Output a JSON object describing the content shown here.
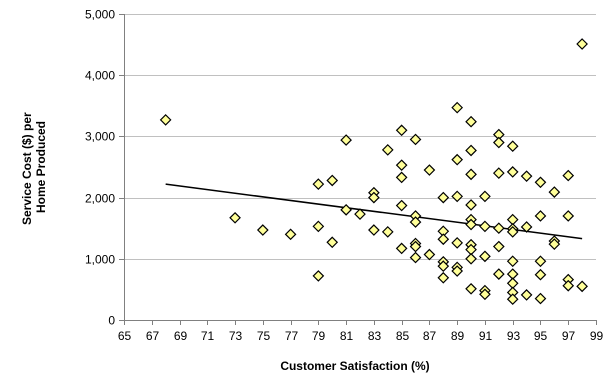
{
  "chart_data": {
    "type": "scatter",
    "title": "",
    "xlabel": "Customer Satisfaction (%)",
    "ylabel_lines": [
      "Service Cost ($) per",
      "Home Produced"
    ],
    "xlim": [
      65,
      99
    ],
    "ylim": [
      0,
      5000
    ],
    "x_ticks": [
      65,
      67,
      69,
      71,
      73,
      75,
      77,
      79,
      81,
      83,
      85,
      87,
      89,
      91,
      93,
      95,
      97,
      99
    ],
    "y_ticks": [
      0,
      1000,
      2000,
      3000,
      4000,
      5000
    ],
    "y_tick_labels": [
      "0",
      "1,000",
      "2,000",
      "3,000",
      "4,000",
      "5,000"
    ],
    "grid": "horizontal",
    "marker": "diamond",
    "marker_fill": "#ffff99",
    "marker_stroke": "#000000",
    "trendline": {
      "x": [
        68,
        98
      ],
      "y": [
        2220,
        1330
      ]
    },
    "series": [
      {
        "values": [
          [
            68,
            3270
          ],
          [
            73,
            1670
          ],
          [
            75,
            1470
          ],
          [
            77,
            1400
          ],
          [
            79,
            2220
          ],
          [
            79,
            1530
          ],
          [
            79,
            720
          ],
          [
            80,
            2280
          ],
          [
            80,
            1270
          ],
          [
            81,
            2940
          ],
          [
            81,
            1800
          ],
          [
            82,
            1730
          ],
          [
            83,
            2080
          ],
          [
            83,
            2000
          ],
          [
            83,
            1470
          ],
          [
            84,
            2780
          ],
          [
            84,
            1440
          ],
          [
            85,
            3100
          ],
          [
            85,
            2530
          ],
          [
            85,
            2330
          ],
          [
            85,
            1870
          ],
          [
            85,
            1170
          ],
          [
            86,
            2950
          ],
          [
            86,
            1700
          ],
          [
            86,
            1600
          ],
          [
            86,
            1250
          ],
          [
            86,
            1200
          ],
          [
            86,
            1020
          ],
          [
            87,
            2450
          ],
          [
            87,
            1070
          ],
          [
            88,
            2000
          ],
          [
            88,
            1450
          ],
          [
            88,
            1320
          ],
          [
            88,
            950
          ],
          [
            88,
            880
          ],
          [
            88,
            690
          ],
          [
            89,
            3470
          ],
          [
            89,
            2620
          ],
          [
            89,
            2020
          ],
          [
            89,
            1260
          ],
          [
            89,
            860
          ],
          [
            89,
            800
          ],
          [
            90,
            3240
          ],
          [
            90,
            2770
          ],
          [
            90,
            2380
          ],
          [
            90,
            1880
          ],
          [
            90,
            1640
          ],
          [
            90,
            1560
          ],
          [
            90,
            1230
          ],
          [
            90,
            1150
          ],
          [
            90,
            1000
          ],
          [
            90,
            510
          ],
          [
            91,
            2020
          ],
          [
            91,
            1530
          ],
          [
            91,
            1040
          ],
          [
            91,
            480
          ],
          [
            91,
            420
          ],
          [
            92,
            3030
          ],
          [
            92,
            2900
          ],
          [
            92,
            2400
          ],
          [
            92,
            1500
          ],
          [
            92,
            1200
          ],
          [
            92,
            750
          ],
          [
            93,
            2840
          ],
          [
            93,
            2420
          ],
          [
            93,
            1640
          ],
          [
            93,
            1490
          ],
          [
            93,
            1440
          ],
          [
            93,
            960
          ],
          [
            93,
            750
          ],
          [
            93,
            600
          ],
          [
            93,
            450
          ],
          [
            93,
            340
          ],
          [
            94,
            2350
          ],
          [
            94,
            1520
          ],
          [
            94,
            410
          ],
          [
            95,
            2250
          ],
          [
            95,
            1700
          ],
          [
            95,
            960
          ],
          [
            95,
            740
          ],
          [
            95,
            350
          ],
          [
            96,
            2090
          ],
          [
            96,
            1290
          ],
          [
            96,
            1240
          ],
          [
            97,
            2360
          ],
          [
            97,
            1700
          ],
          [
            97,
            660
          ],
          [
            97,
            560
          ],
          [
            98,
            4510
          ],
          [
            98,
            550
          ]
        ]
      }
    ]
  }
}
